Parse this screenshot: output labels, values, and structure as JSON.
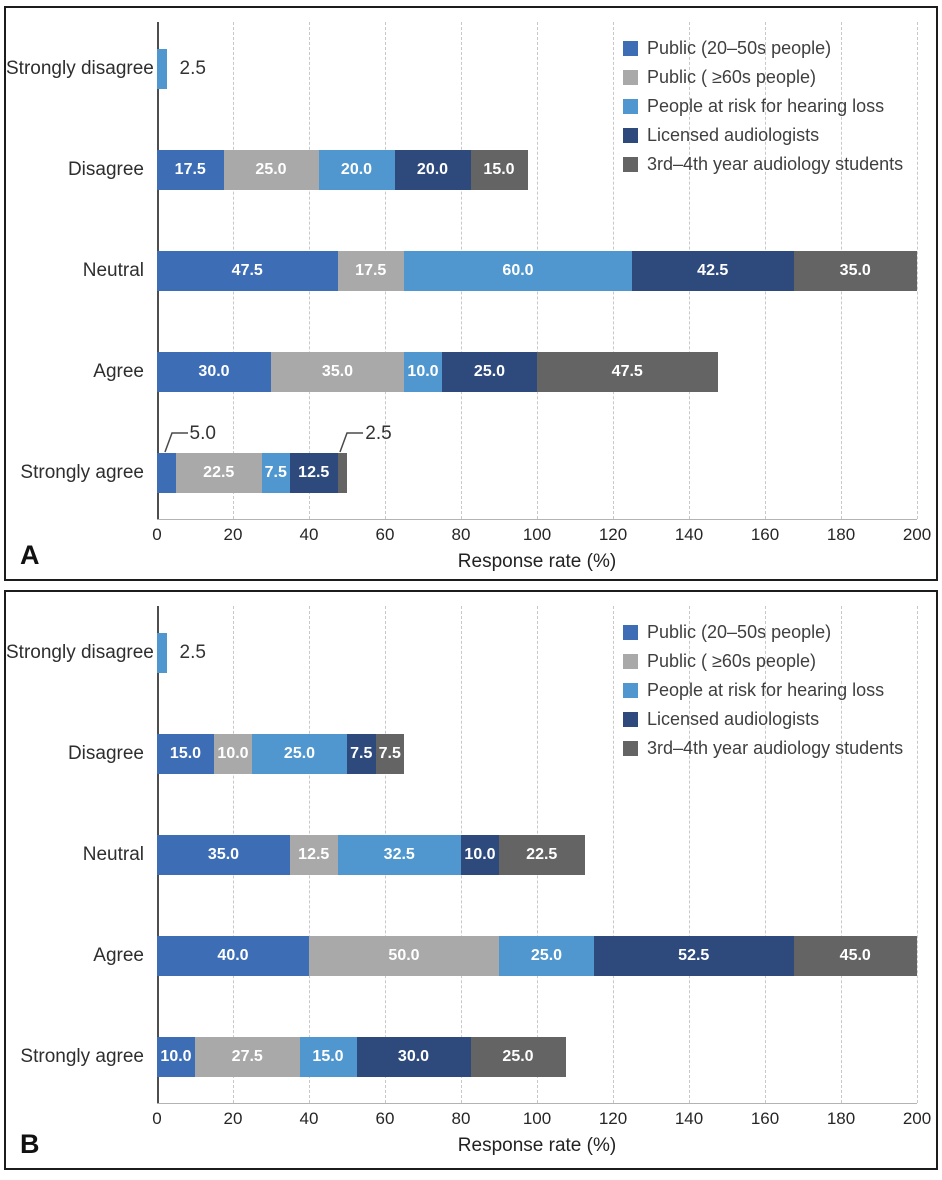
{
  "chart_data": [
    {
      "panel_label": "A",
      "type": "bar",
      "orientation": "horizontal",
      "stacked": true,
      "title": "",
      "xlabel": "Response rate (%)",
      "xlim": [
        0,
        200
      ],
      "xticks": [
        0,
        20,
        40,
        60,
        80,
        100,
        120,
        140,
        160,
        180,
        200
      ],
      "grid": "vertical-dashed",
      "legend_position": "top-right-inside",
      "categories": [
        "Strongly disagree",
        "Disagree",
        "Neutral",
        "Agree",
        "Strongly agree"
      ],
      "series": [
        {
          "name": "Public (20–50s people)",
          "color": "#3d6db5",
          "values": [
            0,
            17.5,
            47.5,
            30.0,
            5.0
          ]
        },
        {
          "name": "Public ( ≥60s people)",
          "color": "#a9a9a9",
          "values": [
            0,
            25.0,
            17.5,
            35.0,
            22.5
          ]
        },
        {
          "name": "People at risk for hearing loss",
          "color": "#4f97ce",
          "values": [
            2.5,
            20.0,
            60.0,
            10.0,
            7.5
          ]
        },
        {
          "name": "Licensed audiologists",
          "color": "#2e4a7d",
          "values": [
            0,
            20.0,
            42.5,
            25.0,
            12.5
          ]
        },
        {
          "name": "3rd–4th year audiology students",
          "color": "#646464",
          "values": [
            0,
            15.0,
            35.0,
            47.5,
            2.5
          ]
        }
      ],
      "outside_labels": [
        {
          "category_index": 0,
          "series_index": 2,
          "label": "2.5"
        }
      ],
      "callouts": [
        {
          "category_index": 4,
          "series_index": 0,
          "label": "5.0"
        },
        {
          "category_index": 4,
          "series_index": 4,
          "label": "2.5"
        }
      ]
    },
    {
      "panel_label": "B",
      "type": "bar",
      "orientation": "horizontal",
      "stacked": true,
      "title": "",
      "xlabel": "Response rate (%)",
      "xlim": [
        0,
        200
      ],
      "xticks": [
        0,
        20,
        40,
        60,
        80,
        100,
        120,
        140,
        160,
        180,
        200
      ],
      "grid": "vertical-dashed",
      "legend_position": "top-right-inside",
      "categories": [
        "Strongly disagree",
        "Disagree",
        "Neutral",
        "Agree",
        "Strongly agree"
      ],
      "series": [
        {
          "name": "Public (20–50s people)",
          "color": "#3d6db5",
          "values": [
            0,
            15.0,
            35.0,
            40.0,
            10.0
          ]
        },
        {
          "name": "Public ( ≥60s people)",
          "color": "#a9a9a9",
          "values": [
            0,
            10.0,
            12.5,
            50.0,
            27.5
          ]
        },
        {
          "name": "People at risk for hearing loss",
          "color": "#4f97ce",
          "values": [
            2.5,
            25.0,
            32.5,
            25.0,
            15.0
          ]
        },
        {
          "name": "Licensed audiologists",
          "color": "#2e4a7d",
          "values": [
            0,
            7.5,
            10.0,
            52.5,
            30.0
          ]
        },
        {
          "name": "3rd–4th year audiology students",
          "color": "#646464",
          "values": [
            0,
            7.5,
            22.5,
            45.0,
            25.0
          ]
        }
      ],
      "outside_labels": [
        {
          "category_index": 0,
          "series_index": 2,
          "label": "2.5"
        }
      ],
      "callouts": []
    }
  ],
  "style": {
    "axis_color": "#4d4d4d",
    "gridline_color": "#c8c8c8",
    "value_label_color": "#ffffff",
    "min_value_for_inside_label": 7.5
  }
}
